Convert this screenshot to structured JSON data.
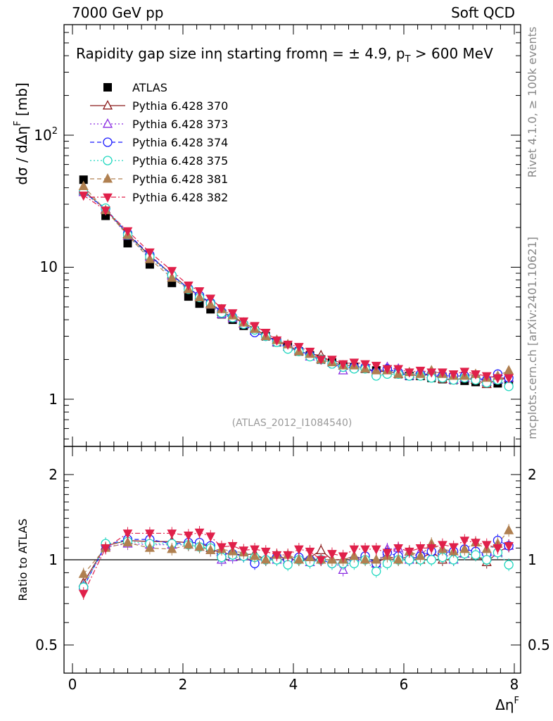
{
  "header": {
    "left": "7000 GeV pp",
    "right": "Soft QCD"
  },
  "plot_title": "Rapidity gap size in η starting from η = ± 4.9, p_T > 600 MeV",
  "plot_title_parts": {
    "main": "Rapidity gap size inη starting fromη = ± 4.9, p",
    "sub": "T",
    "tail": " > 600 MeV"
  },
  "side_labels": {
    "rivet": "Rivet 4.1.0, ≥ 100k events",
    "mcplots": "mcplots.cern.ch [arXiv:2401.10621]"
  },
  "analysis_id": "(ATLAS_2012_I1084540)",
  "colors": {
    "ATLAS": "#000000",
    "370": "#8b1a1a",
    "373": "#8a2be2",
    "374": "#1a1aff",
    "375": "#20d8c0",
    "381": "#b08050",
    "382": "#e0204a"
  },
  "chart_data": [
    {
      "type": "scatter",
      "panel": "main",
      "ylabel": "dσ / dΔη^F [mb]",
      "xlabel": "Δη^F",
      "yscale": "log",
      "ylim": [
        0.45,
        600
      ],
      "xlim": [
        -0.2,
        8.2
      ],
      "x_ticks": [
        "0",
        "2",
        "4",
        "6",
        "8"
      ],
      "y_ticks": [
        "1",
        "10",
        "10^2"
      ],
      "x": [
        0.2,
        0.6,
        1.0,
        1.4,
        1.8,
        2.1,
        2.3,
        2.5,
        2.7,
        2.9,
        3.1,
        3.3,
        3.5,
        3.7,
        3.9,
        4.1,
        4.3,
        4.5,
        4.7,
        4.9,
        5.1,
        5.3,
        5.5,
        5.7,
        5.9,
        6.1,
        6.3,
        6.5,
        6.7,
        6.9,
        7.1,
        7.3,
        7.5,
        7.7,
        7.9
      ],
      "series": [
        {
          "name": "ATLAS",
          "marker": "square",
          "values": [
            46,
            24.5,
            15.2,
            10.5,
            7.6,
            6.0,
            5.3,
            4.8,
            4.4,
            4.0,
            3.6,
            3.3,
            3.0,
            2.7,
            2.5,
            2.3,
            2.15,
            2.0,
            1.9,
            1.8,
            1.75,
            1.7,
            1.65,
            1.6,
            1.55,
            1.5,
            1.5,
            1.45,
            1.42,
            1.4,
            1.38,
            1.35,
            1.33,
            1.32,
            1.3
          ]
        },
        {
          "name": "Pythia 6.428 370",
          "marker": "triangle-up-open",
          "line": "solid",
          "values": [
            38,
            27.5,
            17.8,
            12.2,
            8.8,
            6.9,
            6.1,
            5.3,
            4.6,
            4.2,
            3.75,
            3.45,
            3.0,
            2.8,
            2.5,
            2.3,
            2.2,
            2.15,
            1.9,
            1.8,
            1.8,
            1.7,
            1.6,
            1.65,
            1.55,
            1.55,
            1.5,
            1.55,
            1.42,
            1.4,
            1.45,
            1.4,
            1.3,
            1.4,
            1.45
          ]
        },
        {
          "name": "Pythia 6.428 373",
          "marker": "triangle-up-open",
          "line": "dotted",
          "values": [
            37,
            27.2,
            17.3,
            11.9,
            8.6,
            6.8,
            5.9,
            5.2,
            4.4,
            4.1,
            3.7,
            3.3,
            3.0,
            2.7,
            2.5,
            2.35,
            2.1,
            2.0,
            1.9,
            1.65,
            1.75,
            1.7,
            1.6,
            1.75,
            1.7,
            1.5,
            1.6,
            1.5,
            1.5,
            1.4,
            1.45,
            1.45,
            1.35,
            1.4,
            1.45
          ]
        },
        {
          "name": "Pythia 6.428 374",
          "marker": "circle-open",
          "line": "dashed",
          "values": [
            37,
            27.8,
            18.0,
            12.4,
            8.7,
            6.9,
            6.1,
            5.4,
            4.6,
            4.2,
            3.7,
            3.2,
            3.0,
            2.75,
            2.45,
            2.35,
            2.15,
            2.0,
            1.85,
            1.75,
            1.75,
            1.75,
            1.6,
            1.7,
            1.6,
            1.5,
            1.55,
            1.55,
            1.5,
            1.5,
            1.5,
            1.45,
            1.4,
            1.55,
            1.45
          ]
        },
        {
          "name": "Pythia 6.428 375",
          "marker": "circle-open",
          "line": "dotted",
          "values": [
            37,
            28.0,
            17.6,
            12.0,
            8.7,
            6.8,
            5.9,
            5.3,
            4.5,
            4.15,
            3.7,
            3.35,
            3.0,
            2.7,
            2.4,
            2.3,
            2.1,
            2.0,
            1.85,
            1.75,
            1.7,
            1.7,
            1.5,
            1.55,
            1.55,
            1.5,
            1.5,
            1.45,
            1.45,
            1.4,
            1.45,
            1.4,
            1.33,
            1.4,
            1.25
          ]
        },
        {
          "name": "Pythia 6.428 381",
          "marker": "triangle-up-filled",
          "line": "dashed",
          "values": [
            41,
            27.0,
            17.5,
            11.5,
            8.3,
            6.8,
            5.9,
            5.2,
            4.8,
            4.3,
            3.8,
            3.4,
            3.0,
            2.8,
            2.6,
            2.3,
            2.2,
            2.0,
            1.9,
            1.8,
            1.8,
            1.7,
            1.65,
            1.65,
            1.55,
            1.6,
            1.55,
            1.65,
            1.55,
            1.5,
            1.5,
            1.55,
            1.45,
            1.5,
            1.65
          ]
        },
        {
          "name": "Pythia 6.428 382",
          "marker": "triangle-down-filled",
          "line": "dashdot",
          "values": [
            35,
            27.0,
            18.8,
            13.0,
            9.4,
            7.3,
            6.6,
            5.8,
            4.9,
            4.5,
            3.9,
            3.6,
            3.2,
            2.8,
            2.6,
            2.5,
            2.3,
            2.0,
            2.0,
            1.85,
            1.9,
            1.85,
            1.8,
            1.7,
            1.7,
            1.6,
            1.65,
            1.6,
            1.6,
            1.55,
            1.62,
            1.55,
            1.5,
            1.45,
            1.45
          ]
        }
      ]
    },
    {
      "type": "scatter",
      "panel": "ratio",
      "ylabel": "Ratio to ATLAS",
      "xlabel": "Δη^F",
      "yscale": "log",
      "ylim": [
        0.42,
        2.4
      ],
      "y_ticks": [
        "0.5",
        "1",
        "2"
      ],
      "reference_line": 1.0,
      "x": [
        0.2,
        0.6,
        1.0,
        1.4,
        1.8,
        2.1,
        2.3,
        2.5,
        2.7,
        2.9,
        3.1,
        3.3,
        3.5,
        3.7,
        3.9,
        4.1,
        4.3,
        4.5,
        4.7,
        4.9,
        5.1,
        5.3,
        5.5,
        5.7,
        5.9,
        6.1,
        6.3,
        6.5,
        6.7,
        6.9,
        7.1,
        7.3,
        7.5,
        7.7,
        7.9
      ],
      "series": [
        {
          "name": "Pythia 6.428 370",
          "values": [
            0.83,
            1.12,
            1.17,
            1.16,
            1.16,
            1.15,
            1.15,
            1.1,
            1.05,
            1.05,
            1.04,
            1.05,
            1.0,
            1.04,
            1.0,
            1.0,
            1.02,
            1.08,
            1.0,
            1.0,
            1.03,
            1.0,
            0.97,
            1.03,
            1.0,
            1.03,
            1.0,
            1.07,
            1.0,
            1.0,
            1.05,
            1.04,
            0.98,
            1.06,
            1.12
          ]
        },
        {
          "name": "Pythia 6.428 373",
          "values": [
            0.81,
            1.11,
            1.14,
            1.13,
            1.13,
            1.13,
            1.11,
            1.08,
            1.0,
            1.02,
            1.03,
            1.0,
            1.0,
            1.0,
            1.0,
            1.02,
            0.98,
            1.0,
            1.0,
            0.92,
            1.0,
            1.0,
            0.97,
            1.09,
            1.1,
            1.0,
            1.07,
            1.03,
            1.06,
            1.0,
            1.05,
            1.07,
            1.02,
            1.06,
            1.12
          ]
        },
        {
          "name": "Pythia 6.428 374",
          "values": [
            0.8,
            1.13,
            1.18,
            1.18,
            1.14,
            1.15,
            1.15,
            1.12,
            1.05,
            1.05,
            1.03,
            0.97,
            1.0,
            1.02,
            1.0,
            1.02,
            1.0,
            1.0,
            0.97,
            0.97,
            1.0,
            1.03,
            0.97,
            1.06,
            1.03,
            1.0,
            1.03,
            1.07,
            1.06,
            1.07,
            1.09,
            1.07,
            1.05,
            1.17,
            1.12
          ]
        },
        {
          "name": "Pythia 6.428 375",
          "values": [
            0.8,
            1.14,
            1.16,
            1.14,
            1.14,
            1.13,
            1.11,
            1.1,
            1.02,
            1.04,
            1.03,
            1.02,
            1.0,
            1.0,
            0.96,
            1.0,
            0.98,
            1.0,
            0.97,
            0.97,
            0.97,
            1.0,
            0.91,
            0.97,
            1.0,
            1.0,
            1.0,
            1.0,
            1.02,
            1.0,
            1.05,
            1.04,
            1.0,
            1.06,
            0.96
          ]
        },
        {
          "name": "Pythia 6.428 381",
          "values": [
            0.89,
            1.1,
            1.15,
            1.1,
            1.09,
            1.13,
            1.11,
            1.08,
            1.09,
            1.07,
            1.06,
            1.03,
            1.0,
            1.04,
            1.04,
            1.0,
            1.02,
            1.0,
            1.0,
            1.0,
            1.03,
            1.0,
            1.0,
            1.03,
            1.0,
            1.07,
            1.03,
            1.14,
            1.09,
            1.07,
            1.09,
            1.15,
            1.09,
            1.14,
            1.27
          ]
        },
        {
          "name": "Pythia 6.428 382",
          "values": [
            0.76,
            1.1,
            1.24,
            1.24,
            1.24,
            1.22,
            1.25,
            1.21,
            1.11,
            1.12,
            1.08,
            1.09,
            1.07,
            1.04,
            1.04,
            1.09,
            1.07,
            1.0,
            1.05,
            1.03,
            1.09,
            1.09,
            1.09,
            1.06,
            1.1,
            1.07,
            1.1,
            1.1,
            1.13,
            1.11,
            1.17,
            1.15,
            1.13,
            1.1,
            1.12
          ]
        }
      ]
    }
  ]
}
